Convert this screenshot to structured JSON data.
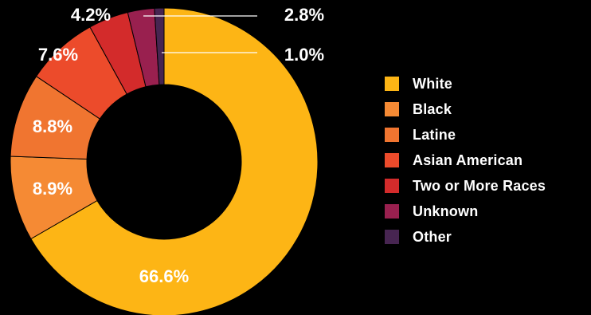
{
  "chart_data": {
    "type": "pie",
    "variant": "donut",
    "categories": [
      "White",
      "Black",
      "Latine",
      "Asian American",
      "Two or More Races",
      "Unknown",
      "Other"
    ],
    "values": [
      66.6,
      8.9,
      8.8,
      7.6,
      4.2,
      2.8,
      1.0
    ],
    "value_labels": [
      "66.6%",
      "8.9%",
      "8.8%",
      "7.6%",
      "4.2%",
      "2.8%",
      "1.0%"
    ],
    "colors": [
      "#FDB515",
      "#F58A34",
      "#F07530",
      "#EC4B2B",
      "#D32B2B",
      "#99204F",
      "#472551"
    ],
    "title": "",
    "legend_position": "right"
  }
}
